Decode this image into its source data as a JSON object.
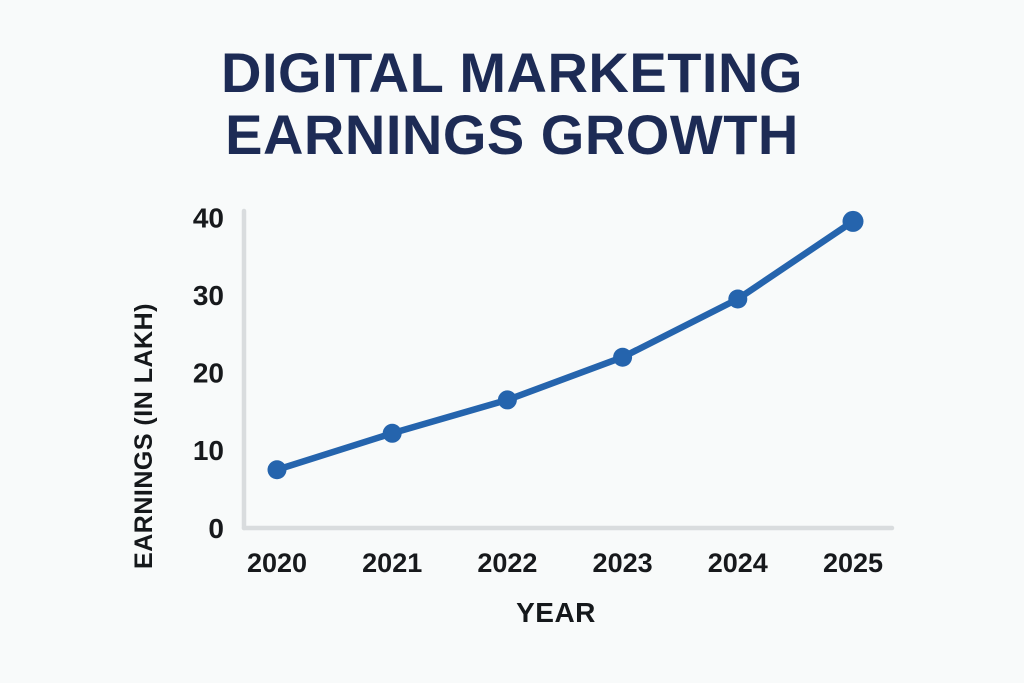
{
  "header": {
    "title_lines": [
      "DIGITAL MARKETING",
      "EARNINGS GROWTH"
    ]
  },
  "colors": {
    "background": "#f8fafa",
    "title_text": "#1d2b55",
    "axis_line": "#d9dcde",
    "tick_text": "#17191c",
    "axis_title_text": "#15181b",
    "series_blue": "#2564ad"
  },
  "chart_data": {
    "type": "line",
    "title": "DIGITAL MARKETING EARNINGS GROWTH",
    "categories": [
      "2020",
      "2021",
      "2022",
      "2023",
      "2024",
      "2025"
    ],
    "series": [
      {
        "name": "Earnings",
        "values": [
          7.5,
          12.2,
          16.5,
          22,
          29.5,
          39.5
        ]
      }
    ],
    "xlabel": "YEAR",
    "ylabel": "EARNINGS (IN LAKH)",
    "ylim": [
      0,
      40
    ],
    "yticks": [
      0,
      10,
      20,
      30,
      40
    ],
    "grid": false,
    "legend": "none",
    "marker": "circle",
    "line_width": 6.5,
    "marker_radius": 9.5
  }
}
